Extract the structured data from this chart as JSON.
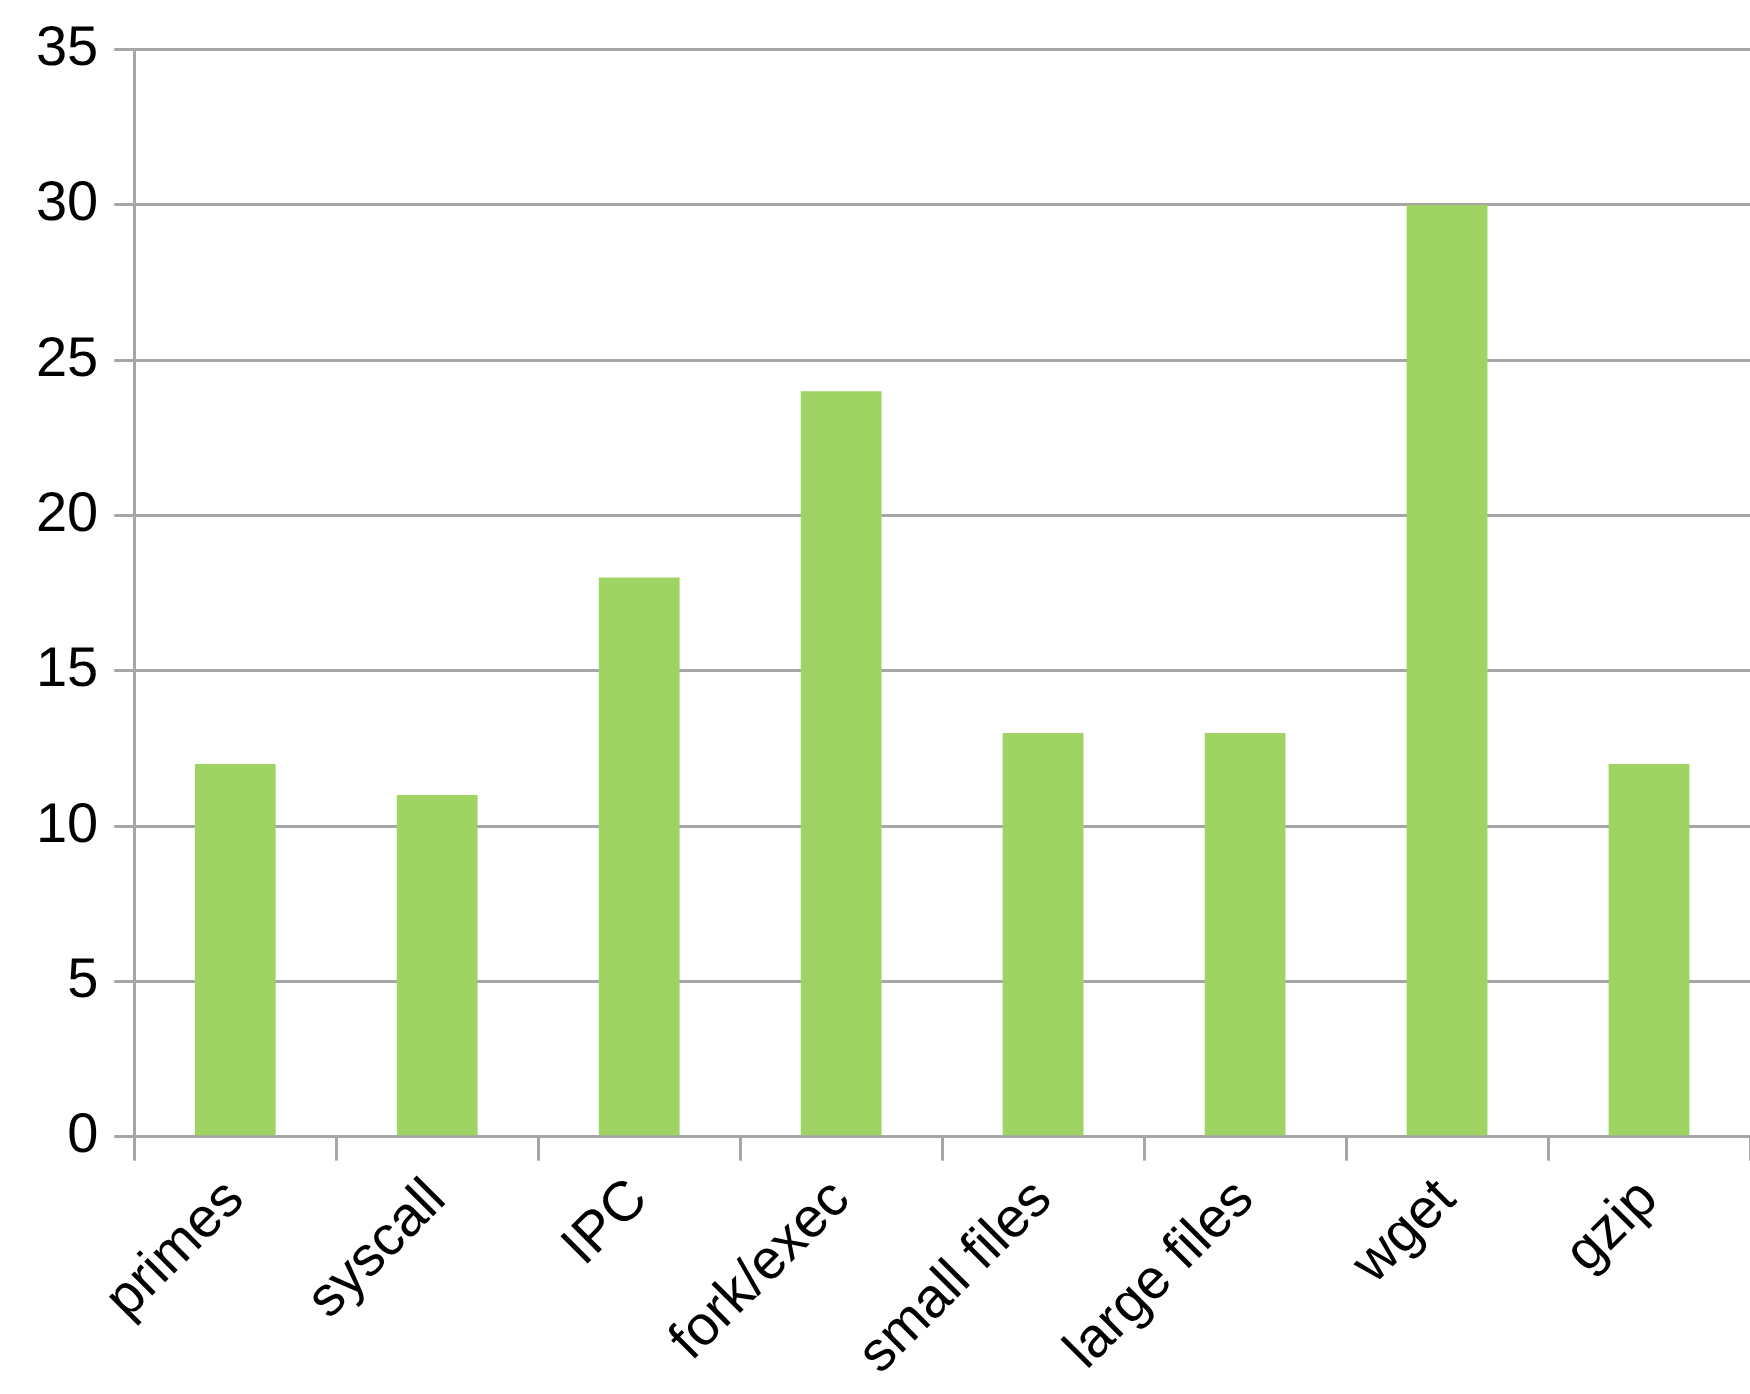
{
  "chart_data": {
    "type": "bar",
    "categories": [
      "primes",
      "syscall",
      "IPC",
      "fork/exec",
      "small files",
      "large files",
      "wget",
      "gzip"
    ],
    "values": [
      12,
      11,
      18,
      24,
      13,
      13,
      30,
      12
    ],
    "color": "#9fd464",
    "ylim": [
      0,
      35
    ],
    "yticks": [
      0,
      5,
      10,
      15,
      20,
      25,
      30,
      35
    ],
    "grid": "y"
  }
}
